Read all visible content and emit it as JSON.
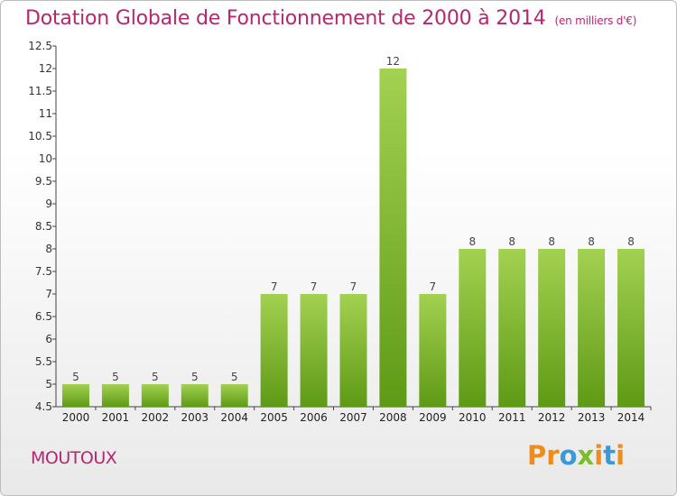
{
  "header": {
    "title": "Dotation Globale de Fonctionnement de 2000 à 2014",
    "unit": "(en milliers d'€)"
  },
  "footer": {
    "commune": "MOUTOUX",
    "logo_text": "Proxiti"
  },
  "colors": {
    "title": "#b5276f",
    "bar_light": "#a3d151",
    "bar_dark": "#5e9a15",
    "logo_letters": [
      "#f08c1a",
      "#f08c1a",
      "#3a9ad9",
      "#7cbd2b",
      "#f08c1a",
      "#3a9ad9",
      "#f08c1a"
    ]
  },
  "chart_data": {
    "type": "bar",
    "categories": [
      "2000",
      "2001",
      "2002",
      "2003",
      "2004",
      "2005",
      "2006",
      "2007",
      "2008",
      "2009",
      "2010",
      "2011",
      "2012",
      "2013",
      "2014"
    ],
    "values": [
      5,
      5,
      5,
      5,
      5,
      7,
      7,
      7,
      12,
      7,
      8,
      8,
      8,
      8,
      8
    ],
    "value_labels": [
      "5",
      "5",
      "5",
      "5",
      "5",
      "7",
      "7",
      "7",
      "12",
      "7",
      "8",
      "8",
      "8",
      "8",
      "8"
    ],
    "ylim": [
      4.5,
      12.5
    ],
    "yticks": [
      4.5,
      5,
      5.5,
      6,
      6.5,
      7,
      7.5,
      8,
      8.5,
      9,
      9.5,
      10,
      10.5,
      11,
      11.5,
      12,
      12.5
    ],
    "ytick_labels": [
      "4.5",
      "5",
      "5.5",
      "6",
      "6.5",
      "7",
      "7.5",
      "8",
      "8.5",
      "9",
      "9.5",
      "10",
      "10.5",
      "11",
      "11.5",
      "12",
      "12.5"
    ],
    "grid": false,
    "legend": "none"
  }
}
